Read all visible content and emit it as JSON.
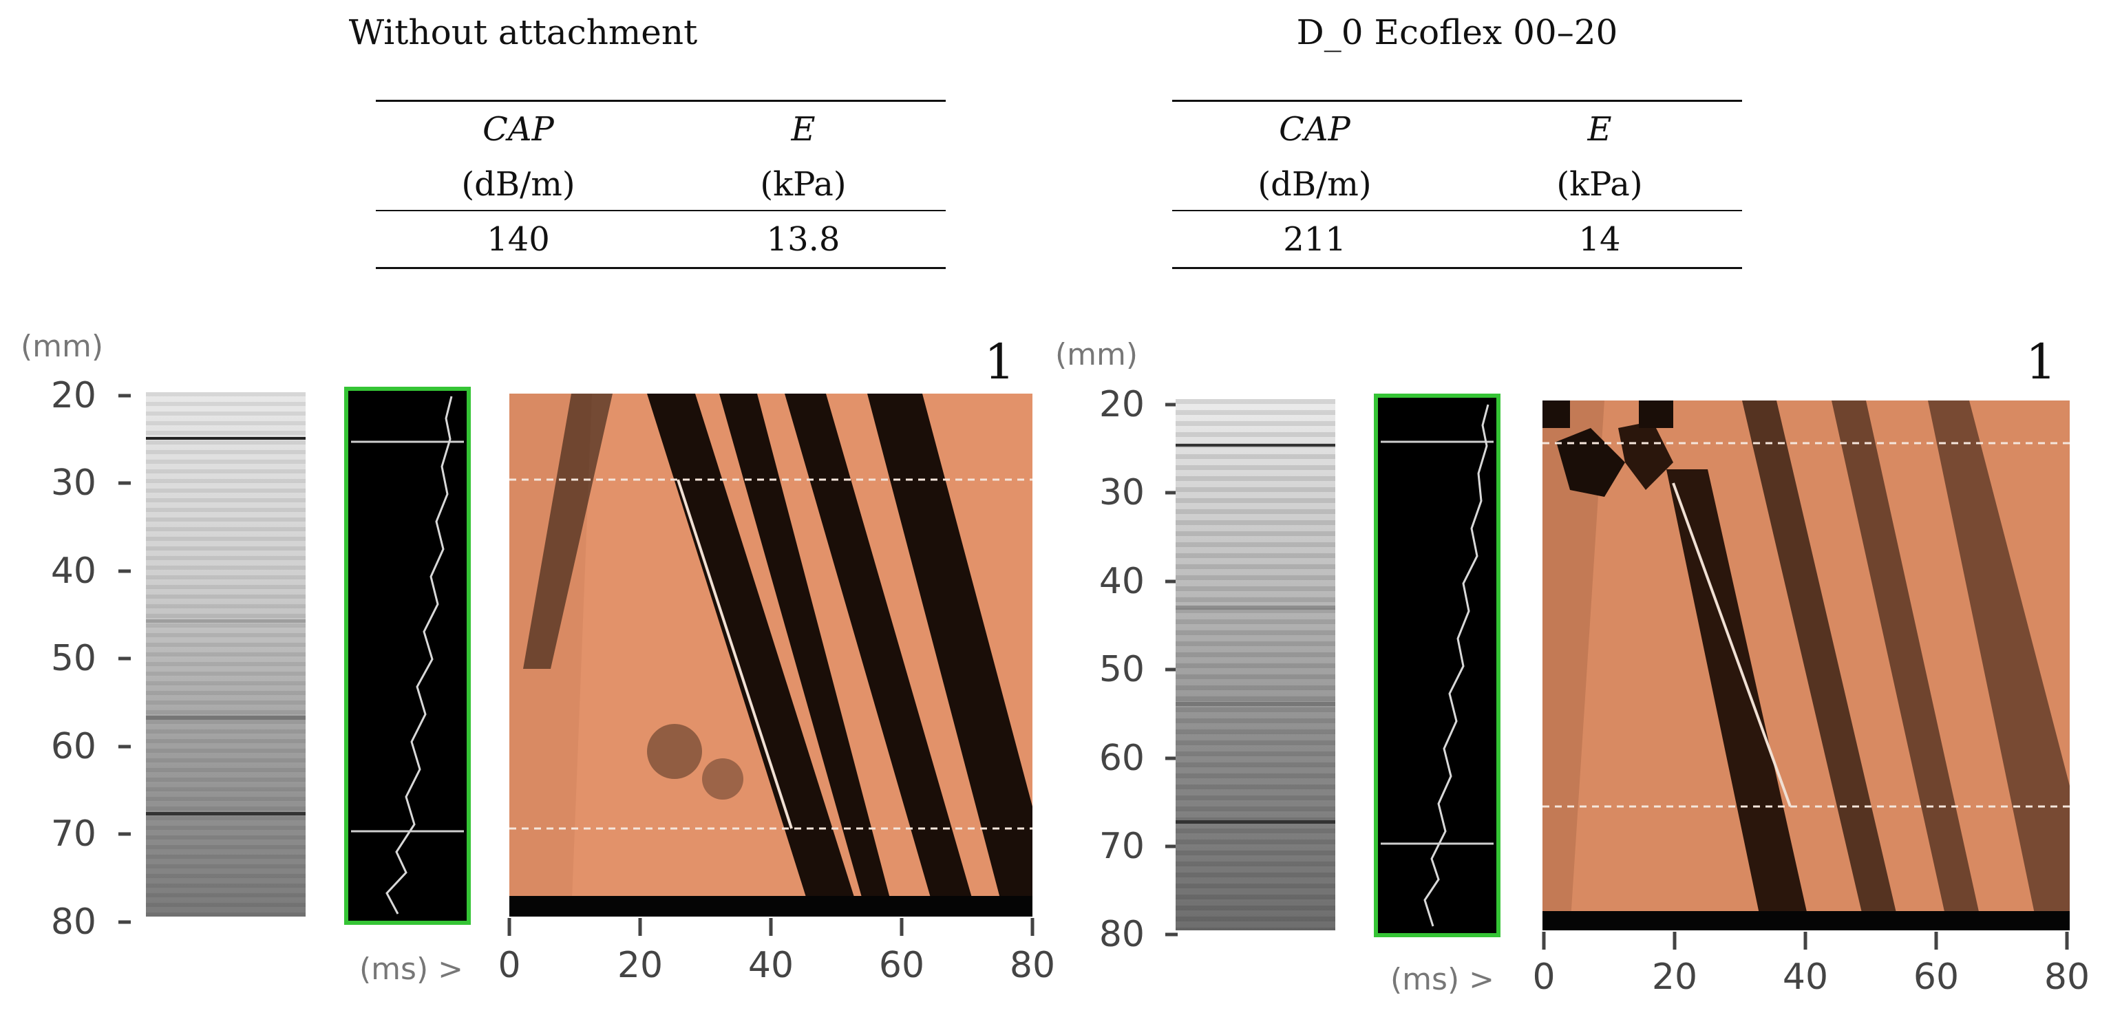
{
  "panels": [
    {
      "title": "Without attachment",
      "table": {
        "col1_header": "CAP",
        "col1_unit": "(dB/m)",
        "col2_header": "E",
        "col2_unit": "(kPa)",
        "col1_value": "140",
        "col2_value": "13.8"
      },
      "y_unit": "(mm)",
      "y_ticks": [
        "20",
        "30",
        "40",
        "50",
        "60",
        "70",
        "80"
      ],
      "x_unit": "(ms) >",
      "x_ticks": [
        "0",
        "20",
        "40",
        "60",
        "80"
      ],
      "corner_label": "1"
    },
    {
      "title": "D_0 Ecoflex 00–20",
      "table": {
        "col1_header": "CAP",
        "col1_unit": "(dB/m)",
        "col2_header": "E",
        "col2_unit": "(kPa)",
        "col1_value": "211",
        "col2_value": "14"
      },
      "y_unit": "(mm)",
      "y_ticks": [
        "20",
        "30",
        "40",
        "50",
        "60",
        "70",
        "80"
      ],
      "x_unit": "(ms) >",
      "x_ticks": [
        "0",
        "20",
        "40",
        "60",
        "80"
      ],
      "corner_label": "1"
    }
  ],
  "colors": {
    "elastogram_orange": "#e2926a",
    "elastogram_dark": "#1a0e08",
    "trace_box_border": "#35c435",
    "trace_line": "#d8d8d8"
  }
}
